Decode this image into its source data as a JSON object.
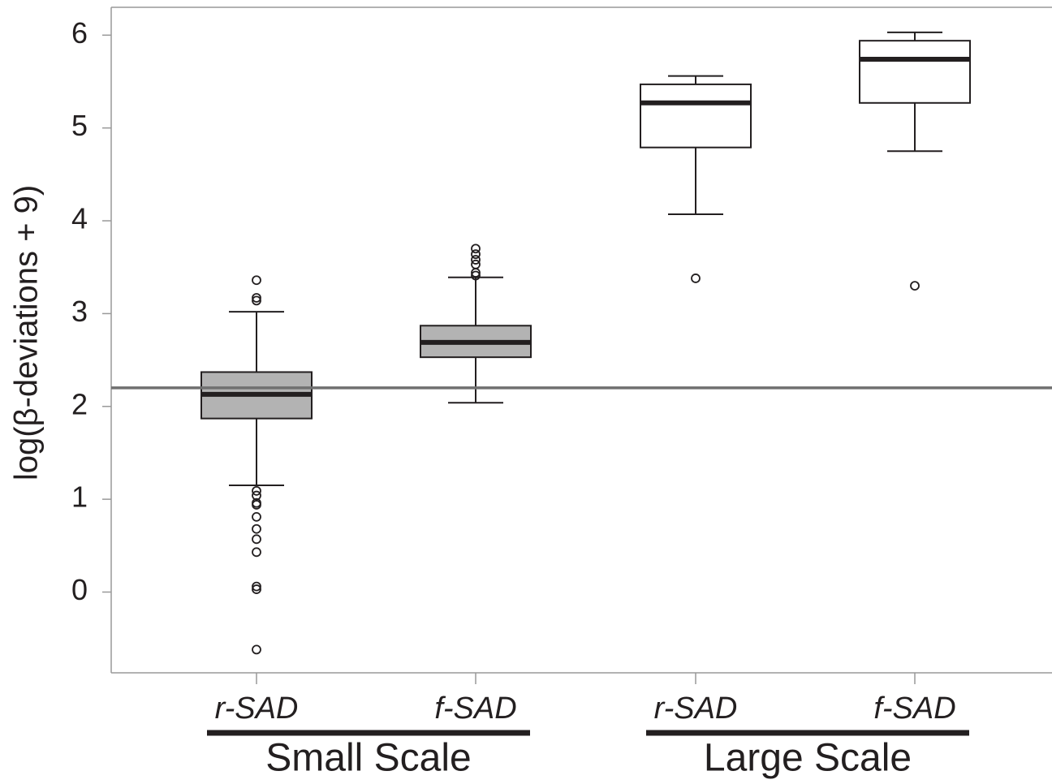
{
  "chart_data": {
    "type": "box",
    "ylabel": "log(β-deviations + 9)",
    "ylim": [
      -0.87,
      6.3
    ],
    "yticks": [
      0,
      1,
      2,
      3,
      4,
      5,
      6
    ],
    "reference_line": 2.2,
    "reference_color": "#707070",
    "groups": [
      {
        "name": "Small Scale",
        "color": "#b3b3b3",
        "categories": [
          "r-SAD",
          "f-SAD"
        ],
        "boxes": [
          {
            "whisker_low": 1.15,
            "q1": 1.87,
            "median": 2.13,
            "q3": 2.37,
            "whisker_high": 3.02,
            "outliers": [
              3.36,
              3.17,
              3.14,
              1.09,
              1.04,
              0.96,
              0.94,
              0.81,
              0.68,
              0.57,
              0.43,
              0.06,
              0.03,
              -0.62
            ]
          },
          {
            "whisker_low": 2.04,
            "q1": 2.53,
            "median": 2.69,
            "q3": 2.87,
            "whisker_high": 3.39,
            "outliers": [
              3.7,
              3.64,
              3.58,
              3.53,
              3.44,
              3.41
            ]
          }
        ]
      },
      {
        "name": "Large Scale",
        "color": "#ffffff",
        "categories": [
          "r-SAD",
          "f-SAD"
        ],
        "boxes": [
          {
            "whisker_low": 4.07,
            "q1": 4.79,
            "median": 5.27,
            "q3": 5.47,
            "whisker_high": 5.56,
            "outliers": [
              3.38
            ]
          },
          {
            "whisker_low": 4.75,
            "q1": 5.27,
            "median": 5.74,
            "q3": 5.94,
            "whisker_high": 6.03,
            "outliers": [
              3.3
            ]
          }
        ]
      }
    ]
  }
}
